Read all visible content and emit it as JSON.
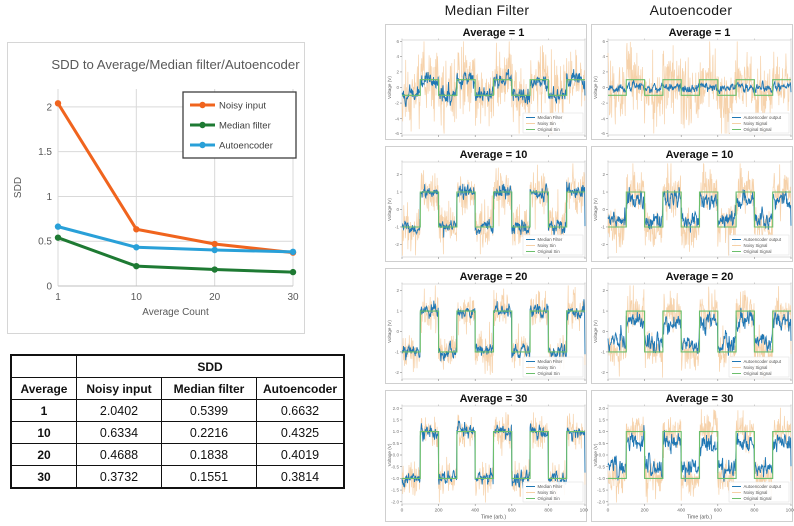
{
  "colors": {
    "noisy_input": "#f0641e",
    "median_filter": "#1e7a33",
    "autoencoder": "#29a0d8",
    "sub_output": "#1f77b4",
    "sub_noisy": "#f6d0a6",
    "sub_original": "#6cbf6c",
    "grid_line": "#d9d9d9",
    "axis_text": "#595959"
  },
  "table": {
    "group_header": "SDD",
    "columns": [
      "Average",
      "Noisy input",
      "Median filter",
      "Autoencoder"
    ],
    "rows": [
      [
        "1",
        "2.0402",
        "0.5399",
        "0.6632"
      ],
      [
        "10",
        "0.6334",
        "0.2216",
        "0.4325"
      ],
      [
        "20",
        "0.4688",
        "0.1838",
        "0.4019"
      ],
      [
        "30",
        "0.3732",
        "0.1551",
        "0.3814"
      ]
    ]
  },
  "panel": {
    "columns": [
      {
        "title": "Median Filter",
        "legend": [
          "Median Filter",
          "Noisy Sin",
          "Original Sin"
        ]
      },
      {
        "title": "Autoencoder",
        "legend": [
          "Autoencoder output",
          "Noisy Signal",
          "Original Signal"
        ]
      }
    ],
    "xlabel": "Time (arb.)",
    "ylabel": "Voltage (V)",
    "x_ticks": [
      0,
      200,
      400,
      600,
      800,
      1000
    ]
  },
  "chart_data": [
    {
      "id": "sdd-chart",
      "type": "line",
      "title": "SDD to Average/Median filter/Autoencoder",
      "xlabel": "Average Count",
      "ylabel": "SDD",
      "categories": [
        1,
        10,
        20,
        30
      ],
      "series": [
        {
          "name": "Noisy input",
          "color": "#f0641e",
          "values": [
            2.0402,
            0.6334,
            0.4688,
            0.3732
          ]
        },
        {
          "name": "Median filter",
          "color": "#1e7a33",
          "values": [
            0.5399,
            0.2216,
            0.1838,
            0.1551
          ]
        },
        {
          "name": "Autoencoder",
          "color": "#29a0d8",
          "values": [
            0.6632,
            0.4325,
            0.4019,
            0.3814
          ]
        }
      ],
      "y_ticks": [
        0,
        0.5,
        1,
        1.5,
        2
      ],
      "ylim": [
        0,
        2.2
      ],
      "grid": true,
      "legend_position": "top-right"
    },
    {
      "id": "mf-avg-1",
      "type": "line",
      "column": 0,
      "title": "Average = 1",
      "xlim": [
        0,
        1000
      ],
      "signal": {
        "shape": "square",
        "period": 200,
        "amplitude": 1
      },
      "noise_sigma": 2.0402,
      "output": {
        "amplitude": 1,
        "noise": 0.54
      },
      "seed": 3
    },
    {
      "id": "ae-avg-1",
      "type": "line",
      "column": 1,
      "title": "Average = 1",
      "xlim": [
        0,
        1000
      ],
      "signal": {
        "shape": "square",
        "period": 200,
        "amplitude": 1
      },
      "noise_sigma": 2.0402,
      "output": {
        "amplitude": 0.08,
        "noise": 0.3
      },
      "seed": 7
    },
    {
      "id": "mf-avg-10",
      "type": "line",
      "column": 0,
      "title": "Average = 10",
      "xlim": [
        0,
        1000
      ],
      "signal": {
        "shape": "square",
        "period": 200,
        "amplitude": 1
      },
      "noise_sigma": 0.6334,
      "output": {
        "amplitude": 1,
        "noise": 0.22
      },
      "seed": 11
    },
    {
      "id": "ae-avg-10",
      "type": "line",
      "column": 1,
      "title": "Average = 10",
      "xlim": [
        0,
        1000
      ],
      "signal": {
        "shape": "square",
        "period": 200,
        "amplitude": 1
      },
      "noise_sigma": 0.6334,
      "output": {
        "amplitude": 0.55,
        "noise": 0.28
      },
      "seed": 15
    },
    {
      "id": "mf-avg-20",
      "type": "line",
      "column": 0,
      "title": "Average = 20",
      "xlim": [
        0,
        1000
      ],
      "signal": {
        "shape": "square",
        "period": 200,
        "amplitude": 1
      },
      "noise_sigma": 0.4688,
      "output": {
        "amplitude": 1,
        "noise": 0.18
      },
      "seed": 19
    },
    {
      "id": "ae-avg-20",
      "type": "line",
      "column": 1,
      "title": "Average = 20",
      "xlim": [
        0,
        1000
      ],
      "signal": {
        "shape": "square",
        "period": 200,
        "amplitude": 1
      },
      "noise_sigma": 0.4688,
      "output": {
        "amplitude": 0.5,
        "noise": 0.25
      },
      "seed": 23
    },
    {
      "id": "mf-avg-30",
      "type": "line",
      "column": 0,
      "title": "Average = 30",
      "xlim": [
        0,
        1000
      ],
      "signal": {
        "shape": "square",
        "period": 200,
        "amplitude": 1
      },
      "noise_sigma": 0.3732,
      "output": {
        "amplitude": 1,
        "noise": 0.16
      },
      "seed": 27
    },
    {
      "id": "ae-avg-30",
      "type": "line",
      "column": 1,
      "title": "Average = 30",
      "xlim": [
        0,
        1000
      ],
      "signal": {
        "shape": "square",
        "period": 200,
        "amplitude": 1
      },
      "noise_sigma": 0.3732,
      "output": {
        "amplitude": 0.55,
        "noise": 0.22
      },
      "seed": 31
    }
  ]
}
